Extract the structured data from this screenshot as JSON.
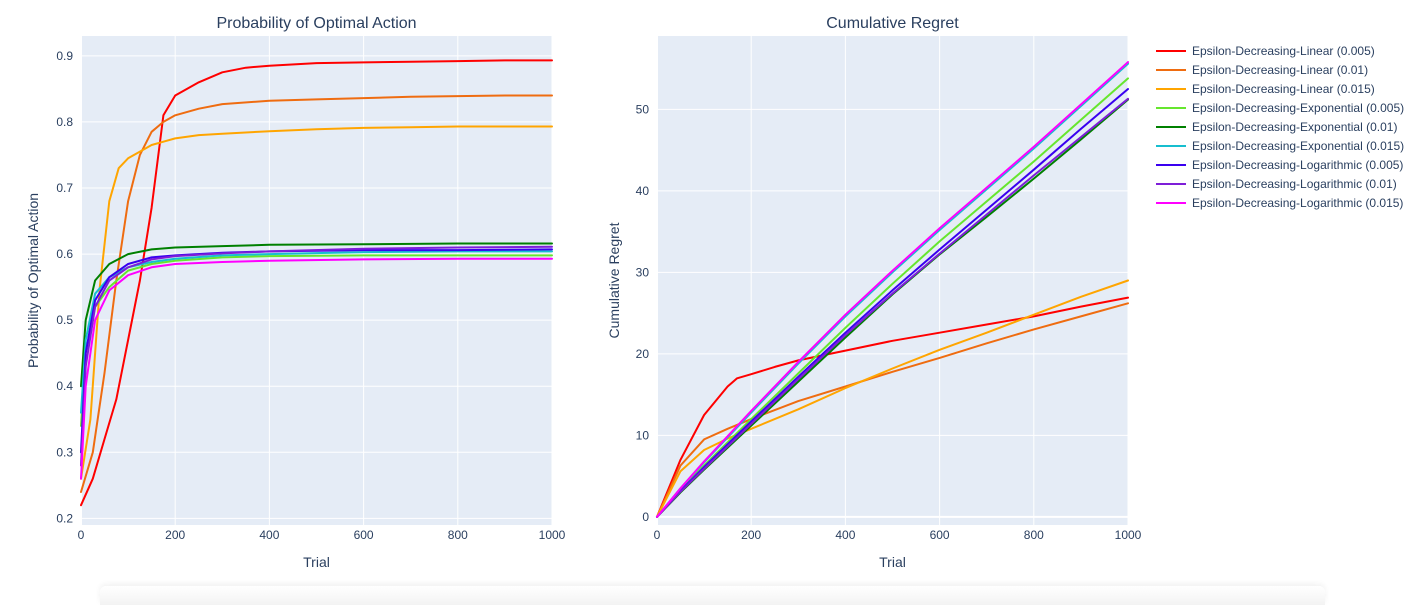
{
  "chart_data": [
    {
      "type": "line",
      "title": "Probability of Optimal Action",
      "xlabel": "Trial",
      "ylabel": "Probability of Optimal Action",
      "xlim": [
        0,
        1000
      ],
      "ylim": [
        0.19,
        0.93
      ],
      "xticks": [
        0,
        200,
        400,
        600,
        800,
        1000
      ],
      "yticks": [
        0.2,
        0.3,
        0.4,
        0.5,
        0.6,
        0.7,
        0.8,
        0.9
      ],
      "grid": true,
      "series": [
        {
          "name": "Epsilon-Decreasing-Linear (0.005)",
          "color": "#ff0000",
          "x": [
            0,
            25,
            50,
            75,
            100,
            125,
            150,
            175,
            200,
            250,
            300,
            350,
            400,
            500,
            600,
            700,
            800,
            900,
            1000
          ],
          "y": [
            0.22,
            0.26,
            0.32,
            0.38,
            0.47,
            0.56,
            0.67,
            0.81,
            0.84,
            0.86,
            0.875,
            0.882,
            0.885,
            0.889,
            0.89,
            0.891,
            0.892,
            0.893,
            0.893
          ]
        },
        {
          "name": "Epsilon-Decreasing-Linear (0.01)",
          "color": "#ef6c10",
          "x": [
            0,
            25,
            50,
            75,
            100,
            125,
            150,
            175,
            200,
            250,
            300,
            400,
            500,
            600,
            700,
            800,
            900,
            1000
          ],
          "y": [
            0.24,
            0.3,
            0.42,
            0.56,
            0.68,
            0.75,
            0.785,
            0.8,
            0.81,
            0.82,
            0.827,
            0.832,
            0.834,
            0.836,
            0.838,
            0.839,
            0.84,
            0.84
          ]
        },
        {
          "name": "Epsilon-Decreasing-Linear (0.015)",
          "color": "#ffa500",
          "x": [
            0,
            20,
            40,
            60,
            80,
            100,
            125,
            150,
            175,
            200,
            250,
            300,
            400,
            500,
            600,
            700,
            800,
            900,
            1000
          ],
          "y": [
            0.26,
            0.35,
            0.55,
            0.68,
            0.73,
            0.745,
            0.755,
            0.765,
            0.77,
            0.775,
            0.78,
            0.782,
            0.786,
            0.789,
            0.791,
            0.792,
            0.793,
            0.793,
            0.793
          ]
        },
        {
          "name": "Epsilon-Decreasing-Exponential (0.005)",
          "color": "#66e62e",
          "x": [
            0,
            10,
            30,
            60,
            100,
            150,
            200,
            300,
            400,
            600,
            800,
            1000
          ],
          "y": [
            0.34,
            0.45,
            0.52,
            0.55,
            0.575,
            0.585,
            0.59,
            0.595,
            0.597,
            0.598,
            0.598,
            0.598
          ]
        },
        {
          "name": "Epsilon-Decreasing-Exponential (0.01)",
          "color": "#008000",
          "x": [
            0,
            10,
            30,
            60,
            100,
            150,
            200,
            300,
            400,
            600,
            800,
            1000
          ],
          "y": [
            0.4,
            0.5,
            0.56,
            0.585,
            0.6,
            0.607,
            0.61,
            0.612,
            0.614,
            0.615,
            0.616,
            0.616
          ]
        },
        {
          "name": "Epsilon-Decreasing-Exponential (0.015)",
          "color": "#17becf",
          "x": [
            0,
            10,
            30,
            60,
            100,
            150,
            200,
            300,
            400,
            600,
            800,
            1000
          ],
          "y": [
            0.36,
            0.47,
            0.54,
            0.565,
            0.58,
            0.588,
            0.593,
            0.598,
            0.6,
            0.603,
            0.604,
            0.604
          ]
        },
        {
          "name": "Epsilon-Decreasing-Logarithmic (0.005)",
          "color": "#3a00f0",
          "x": [
            0,
            10,
            30,
            60,
            100,
            150,
            200,
            300,
            400,
            600,
            800,
            1000
          ],
          "y": [
            0.3,
            0.45,
            0.53,
            0.565,
            0.585,
            0.595,
            0.598,
            0.602,
            0.604,
            0.606,
            0.606,
            0.607
          ]
        },
        {
          "name": "Epsilon-Decreasing-Logarithmic (0.01)",
          "color": "#7e1ed8",
          "x": [
            0,
            10,
            30,
            60,
            100,
            150,
            200,
            300,
            400,
            600,
            800,
            1000
          ],
          "y": [
            0.28,
            0.43,
            0.52,
            0.56,
            0.58,
            0.592,
            0.597,
            0.601,
            0.604,
            0.608,
            0.61,
            0.611
          ]
        },
        {
          "name": "Epsilon-Decreasing-Logarithmic (0.015)",
          "color": "#ff00ff",
          "x": [
            0,
            10,
            30,
            60,
            100,
            150,
            200,
            300,
            400,
            600,
            800,
            1000
          ],
          "y": [
            0.26,
            0.4,
            0.5,
            0.545,
            0.568,
            0.58,
            0.585,
            0.588,
            0.59,
            0.592,
            0.593,
            0.593
          ]
        }
      ]
    },
    {
      "type": "line",
      "title": "Cumulative Regret",
      "xlabel": "Trial",
      "ylabel": "Cumulative Regret",
      "xlim": [
        0,
        1000
      ],
      "ylim": [
        -1,
        59
      ],
      "xticks": [
        0,
        200,
        400,
        600,
        800,
        1000
      ],
      "yticks": [
        0,
        10,
        20,
        30,
        40,
        50
      ],
      "grid": true,
      "legend": "right",
      "series": [
        {
          "name": "Epsilon-Decreasing-Linear (0.005)",
          "color": "#ff0000",
          "x": [
            0,
            50,
            100,
            150,
            170,
            200,
            250,
            300,
            350,
            400,
            500,
            600,
            700,
            800,
            900,
            1000
          ],
          "y": [
            0,
            7,
            12.5,
            16,
            17,
            17.5,
            18.4,
            19.2,
            19.8,
            20.4,
            21.6,
            22.6,
            23.6,
            24.6,
            25.8,
            26.9
          ]
        },
        {
          "name": "Epsilon-Decreasing-Linear (0.01)",
          "color": "#ef6c10",
          "x": [
            0,
            50,
            100,
            150,
            200,
            300,
            400,
            500,
            600,
            700,
            800,
            900,
            1000
          ],
          "y": [
            0,
            6.3,
            9.5,
            10.8,
            12,
            14.2,
            16,
            17.8,
            19.5,
            21.3,
            23,
            24.6,
            26.2
          ]
        },
        {
          "name": "Epsilon-Decreasing-Linear (0.015)",
          "color": "#ffa500",
          "x": [
            0,
            50,
            100,
            150,
            200,
            300,
            400,
            500,
            600,
            700,
            800,
            900,
            1000
          ],
          "y": [
            0,
            5.6,
            8.2,
            9.6,
            10.8,
            13.2,
            15.8,
            18.2,
            20.5,
            22.6,
            24.8,
            27,
            29
          ]
        },
        {
          "name": "Epsilon-Decreasing-Exponential (0.005)",
          "color": "#66e62e",
          "x": [
            0,
            50,
            100,
            200,
            300,
            400,
            500,
            600,
            700,
            800,
            900,
            1000
          ],
          "y": [
            0,
            3.3,
            6.3,
            12,
            17.6,
            23.2,
            28.6,
            33.8,
            38.7,
            43.6,
            48.7,
            53.8
          ]
        },
        {
          "name": "Epsilon-Decreasing-Exponential (0.01)",
          "color": "#008000",
          "x": [
            0,
            50,
            100,
            200,
            300,
            400,
            500,
            600,
            700,
            800,
            900,
            1000
          ],
          "y": [
            0,
            3,
            5.8,
            11.2,
            16.6,
            22,
            27.3,
            32.2,
            36.8,
            41.5,
            46.3,
            51.2
          ]
        },
        {
          "name": "Epsilon-Decreasing-Exponential (0.015)",
          "color": "#17becf",
          "x": [
            0,
            50,
            100,
            200,
            300,
            400,
            500,
            600,
            700,
            800,
            900,
            1000
          ],
          "y": [
            0,
            3.5,
            6.7,
            12.8,
            18.8,
            24.6,
            30,
            35.2,
            40.2,
            45.2,
            50.4,
            55.6
          ]
        },
        {
          "name": "Epsilon-Decreasing-Logarithmic (0.005)",
          "color": "#3a00f0",
          "x": [
            0,
            50,
            100,
            200,
            300,
            400,
            500,
            600,
            700,
            800,
            900,
            1000
          ],
          "y": [
            0,
            3.2,
            6.1,
            11.7,
            17.2,
            22.6,
            27.8,
            32.8,
            37.7,
            42.6,
            47.6,
            52.5
          ]
        },
        {
          "name": "Epsilon-Decreasing-Logarithmic (0.01)",
          "color": "#7e1ed8",
          "x": [
            0,
            50,
            100,
            200,
            300,
            400,
            500,
            600,
            700,
            800,
            900,
            1000
          ],
          "y": [
            0,
            3.1,
            5.9,
            11.4,
            16.9,
            22.3,
            27.4,
            32.3,
            37.1,
            41.9,
            46.6,
            51.3
          ]
        },
        {
          "name": "Epsilon-Decreasing-Logarithmic (0.015)",
          "color": "#ff00ff",
          "x": [
            0,
            50,
            100,
            200,
            300,
            400,
            500,
            600,
            700,
            800,
            900,
            1000
          ],
          "y": [
            0,
            3.5,
            6.8,
            13,
            19,
            24.8,
            30.2,
            35.4,
            40.4,
            45.4,
            50.6,
            55.8
          ]
        }
      ]
    }
  ]
}
